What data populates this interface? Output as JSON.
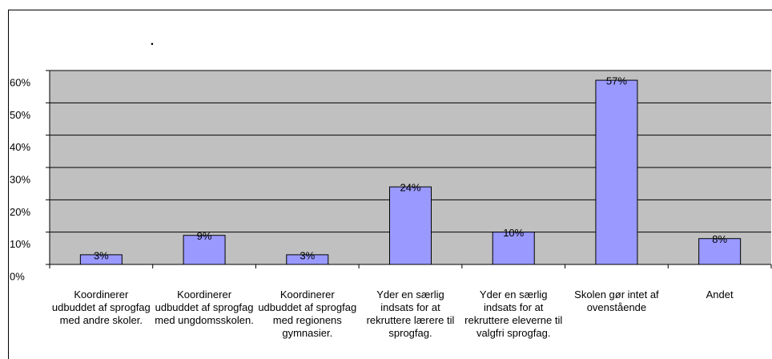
{
  "chart_data": {
    "type": "bar",
    "title": ".",
    "categories": [
      "Koordinerer udbuddet af sprogfag med andre skoler.",
      "Koordinerer udbuddet af sprogfag med ungdomsskolen.",
      "Koordinerer udbuddet af sprogfag med regionens gymnasier.",
      "Yder en særlig indsats for at rekruttere lærere til sprogfag.",
      "Yder en særlig indsats for at rekruttere eleverne til valgfri sprogfag.",
      "Skolen gør intet af ovenstående",
      "Andet"
    ],
    "values": [
      3,
      9,
      3,
      24,
      10,
      57,
      8
    ],
    "value_labels": [
      "3%",
      "9%",
      "3%",
      "24%",
      "10%",
      "57%",
      "8%"
    ],
    "color": "#9999ff",
    "ylim": [
      0,
      60
    ],
    "yticks": [
      {
        "value": 0,
        "label": "0%"
      },
      {
        "value": 10,
        "label": "10%"
      },
      {
        "value": 20,
        "label": "20%"
      },
      {
        "value": 30,
        "label": "30%"
      },
      {
        "value": 40,
        "label": "40%"
      },
      {
        "value": 50,
        "label": "50%"
      },
      {
        "value": 60,
        "label": "60%"
      }
    ],
    "grid": true
  }
}
